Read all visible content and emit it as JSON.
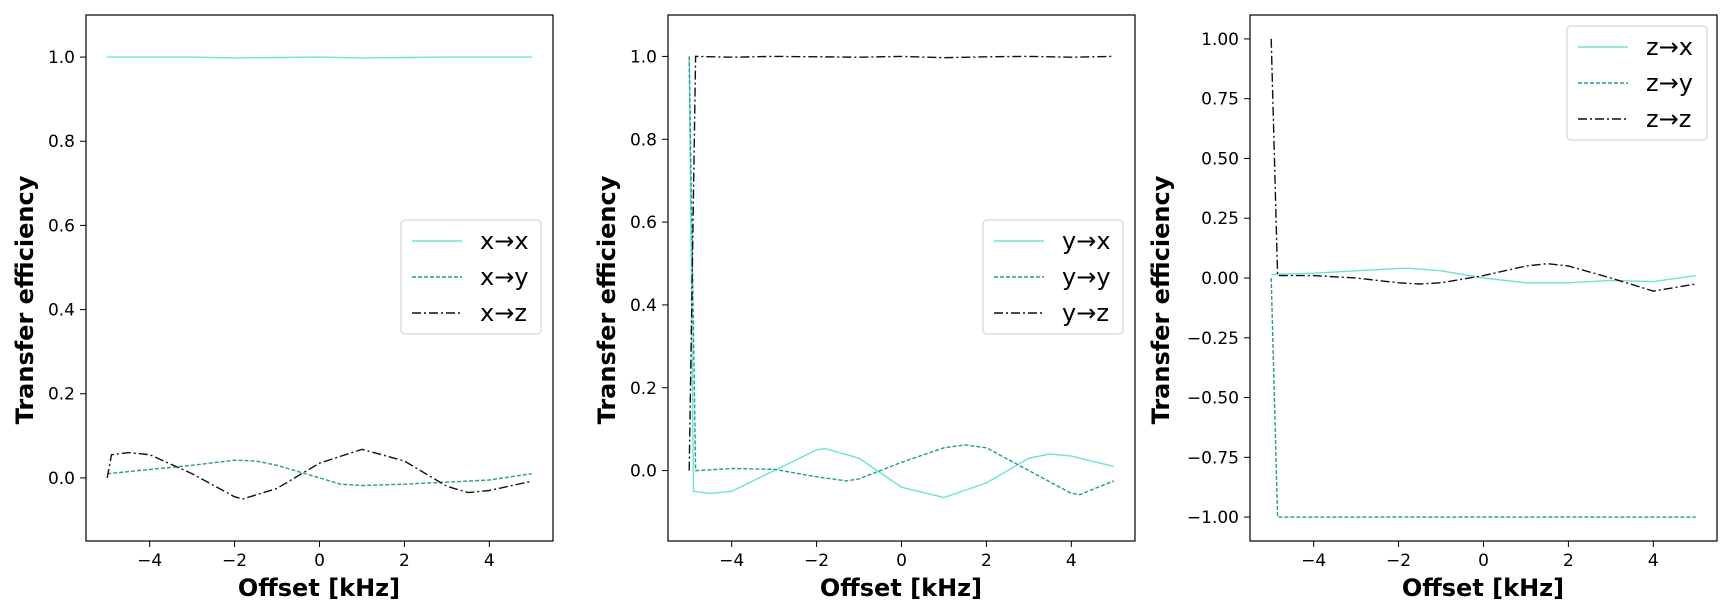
{
  "colors": {
    "x": "#66e6d6",
    "y": "#1e9e96",
    "z": "#111111"
  },
  "chart_data": [
    {
      "type": "line",
      "xlabel": "Offset [kHz]",
      "ylabel": "Transfer efficiency",
      "xlim": [
        -5.5,
        5.5
      ],
      "ylim": [
        -0.15,
        1.1
      ],
      "xticks": [
        -4,
        -2,
        0,
        2,
        4
      ],
      "xtick_labels": [
        "−4",
        "−2",
        "0",
        "2",
        "4"
      ],
      "yticks": [
        0.0,
        0.2,
        0.4,
        0.6,
        0.8,
        1.0
      ],
      "ytick_labels": [
        "0.0",
        "0.2",
        "0.4",
        "0.6",
        "0.8",
        "1.0"
      ],
      "legend_position": "center-right",
      "grid": false,
      "series": [
        {
          "name": "x→x",
          "style": "solid",
          "color_key": "x",
          "x": [
            -5,
            -4,
            -3,
            -2,
            -1,
            0,
            1,
            2,
            3,
            4,
            5
          ],
          "y": [
            1.0,
            1.0,
            1.0,
            0.998,
            0.999,
            1.0,
            0.998,
            0.999,
            1.0,
            1.0,
            1.0
          ]
        },
        {
          "name": "x→y",
          "style": "dashed",
          "color_key": "y",
          "x": [
            -5,
            -4.5,
            -4,
            -3,
            -2,
            -1.5,
            -1,
            0,
            0.5,
            1,
            2,
            3,
            4,
            5
          ],
          "y": [
            0.01,
            0.015,
            0.02,
            0.03,
            0.042,
            0.04,
            0.03,
            0.0,
            -0.015,
            -0.018,
            -0.015,
            -0.01,
            -0.005,
            0.01
          ]
        },
        {
          "name": "x→z",
          "style": "dashdot",
          "color_key": "z",
          "x": [
            -5,
            -4.9,
            -4.5,
            -4,
            -3,
            -2,
            -1.8,
            -1,
            0,
            1,
            2,
            3,
            3.5,
            4,
            5
          ],
          "y": [
            0.0,
            0.055,
            0.06,
            0.055,
            0.01,
            -0.045,
            -0.05,
            -0.025,
            0.035,
            0.068,
            0.04,
            -0.02,
            -0.035,
            -0.03,
            -0.008
          ]
        }
      ]
    },
    {
      "type": "line",
      "xlabel": "Offset [kHz]",
      "ylabel": "Transfer efficiency",
      "xlim": [
        -5.5,
        5.5
      ],
      "ylim": [
        -0.17,
        1.1
      ],
      "xticks": [
        -4,
        -2,
        0,
        2,
        4
      ],
      "xtick_labels": [
        "−4",
        "−2",
        "0",
        "2",
        "4"
      ],
      "yticks": [
        0.0,
        0.2,
        0.4,
        0.6,
        0.8,
        1.0
      ],
      "ytick_labels": [
        "0.0",
        "0.2",
        "0.4",
        "0.6",
        "0.8",
        "1.0"
      ],
      "legend_position": "center-right",
      "grid": false,
      "series": [
        {
          "name": "y→x",
          "style": "solid",
          "color_key": "x",
          "x": [
            -5,
            -4.9,
            -4.5,
            -4,
            -3,
            -2,
            -1.8,
            -1,
            0,
            1,
            2,
            3,
            3.5,
            4,
            5
          ],
          "y": [
            1.0,
            -0.05,
            -0.055,
            -0.05,
            0.0,
            0.05,
            0.053,
            0.03,
            -0.04,
            -0.065,
            -0.03,
            0.03,
            0.04,
            0.035,
            0.01
          ]
        },
        {
          "name": "y→y",
          "style": "dashed",
          "color_key": "y",
          "x": [
            -5,
            -4.85,
            -4.5,
            -4,
            -3,
            -2,
            -1.3,
            -1,
            0,
            1,
            1.5,
            2,
            3,
            4,
            4.2,
            5
          ],
          "y": [
            1.0,
            0.0,
            0.002,
            0.005,
            0.003,
            -0.015,
            -0.025,
            -0.02,
            0.02,
            0.055,
            0.062,
            0.055,
            0.0,
            -0.055,
            -0.058,
            -0.025
          ]
        },
        {
          "name": "y→z",
          "style": "dashdot",
          "color_key": "z",
          "x": [
            -5,
            -4.85,
            -4,
            -3,
            -2,
            -1,
            0,
            1,
            2,
            3,
            4,
            5
          ],
          "y": [
            0.0,
            1.0,
            0.998,
            1.0,
            0.999,
            0.998,
            1.0,
            0.997,
            0.999,
            1.0,
            0.998,
            1.0
          ]
        }
      ]
    },
    {
      "type": "line",
      "xlabel": "Offset [kHz]",
      "ylabel": "Transfer efficiency",
      "xlim": [
        -5.5,
        5.5
      ],
      "ylim": [
        -1.1,
        1.1
      ],
      "xticks": [
        -4,
        -2,
        0,
        2,
        4
      ],
      "xtick_labels": [
        "−4",
        "−2",
        "0",
        "2",
        "4"
      ],
      "yticks": [
        -1.0,
        -0.75,
        -0.5,
        -0.25,
        0.0,
        0.25,
        0.5,
        0.75,
        1.0
      ],
      "ytick_labels": [
        "−1.00",
        "−0.75",
        "−0.50",
        "−0.25",
        "0.00",
        "0.25",
        "0.50",
        "0.75",
        "1.00"
      ],
      "legend_position": "top-right",
      "grid": false,
      "series": [
        {
          "name": "z→x",
          "style": "solid",
          "color_key": "x",
          "x": [
            -5,
            -4,
            -3,
            -2,
            -1.7,
            -1,
            0,
            1,
            2,
            3,
            4,
            5
          ],
          "y": [
            0.015,
            0.02,
            0.03,
            0.04,
            0.04,
            0.03,
            0.0,
            -0.02,
            -0.02,
            -0.01,
            -0.015,
            0.01
          ]
        },
        {
          "name": "z→y",
          "style": "dashed",
          "color_key": "y",
          "x": [
            -5,
            -4.85,
            -4,
            -3,
            -2,
            -1,
            0,
            1,
            2,
            3,
            4,
            5
          ],
          "y": [
            0.0,
            -1.0,
            -1.0,
            -1.0,
            -0.999,
            -1.0,
            -0.999,
            -1.0,
            -0.999,
            -1.0,
            -1.0,
            -1.0
          ]
        },
        {
          "name": "z→z",
          "style": "dashdot",
          "color_key": "z",
          "x": [
            -5,
            -4.85,
            -4,
            -3,
            -2,
            -1.5,
            -1,
            0,
            1,
            1.5,
            2,
            3,
            4,
            5
          ],
          "y": [
            1.0,
            0.01,
            0.01,
            0.0,
            -0.02,
            -0.025,
            -0.02,
            0.01,
            0.05,
            0.06,
            0.05,
            0.0,
            -0.055,
            -0.025
          ]
        }
      ]
    }
  ]
}
